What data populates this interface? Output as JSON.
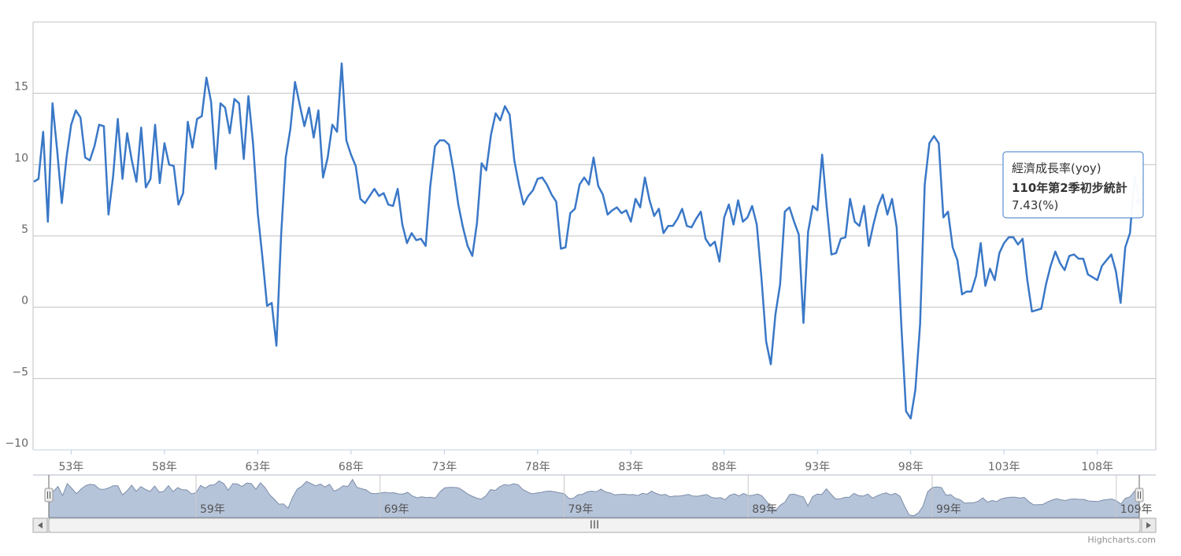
{
  "chart_data": {
    "type": "line",
    "series": [
      {
        "name": "經濟成長率(yoy)",
        "color": "#3a78c7",
        "start": 51,
        "values": [
          8.8,
          9.0,
          12.3,
          6.0,
          14.3,
          11.0,
          7.3,
          10.5,
          12.8,
          13.8,
          13.3,
          10.5,
          10.3,
          11.3,
          12.8,
          12.7,
          6.5,
          9.2,
          13.2,
          9.0,
          12.2,
          10.3,
          8.8,
          12.6,
          8.4,
          9.0,
          12.8,
          8.7,
          11.5,
          10.0,
          9.9,
          7.2,
          8.0,
          13.0,
          11.2,
          13.2,
          13.4,
          16.1,
          14.4,
          9.7,
          14.3,
          14.0,
          12.2,
          14.6,
          14.3,
          10.4,
          14.8,
          11.5,
          6.6,
          3.5,
          0.1,
          0.3,
          -2.7,
          5.0,
          10.5,
          12.5,
          15.8,
          14.2,
          12.7,
          14.0,
          11.9,
          13.8,
          9.1,
          10.5,
          12.8,
          12.3,
          17.1,
          11.7,
          10.7,
          9.9,
          7.6,
          7.3,
          7.8,
          8.3,
          7.8,
          8.0,
          7.2,
          7.1,
          8.3,
          5.8,
          4.5,
          5.2,
          4.7,
          4.8,
          4.3,
          8.5,
          11.3,
          11.7,
          11.7,
          11.4,
          9.5,
          7.2,
          5.6,
          4.3,
          3.6,
          5.9,
          10.1,
          9.6,
          12.1,
          13.6,
          13.1,
          14.1,
          13.5,
          10.3,
          8.6,
          7.2,
          7.8,
          8.2,
          9.0,
          9.1,
          8.6,
          7.9,
          7.4,
          4.1,
          4.2,
          6.6,
          6.9,
          8.6,
          9.1,
          8.6,
          10.5,
          8.5,
          7.9,
          6.5,
          6.8,
          7.0,
          6.6,
          6.8,
          6.0,
          7.6,
          7.0,
          9.1,
          7.5,
          6.4,
          6.9,
          5.2,
          5.7,
          5.7,
          6.2,
          6.9,
          5.7,
          5.6,
          6.2,
          6.7,
          4.8,
          4.3,
          4.6,
          3.2,
          6.3,
          7.2,
          5.8,
          7.5,
          6.0,
          6.3,
          7.1,
          5.8,
          2.0,
          -2.4,
          -4.0,
          -0.5,
          1.6,
          6.7,
          7.0,
          6.0,
          5.1,
          -1.1,
          5.3,
          7.1,
          6.8,
          10.7,
          7.0,
          3.7,
          3.8,
          4.8,
          4.9,
          7.6,
          6.0,
          5.7,
          7.1,
          4.3,
          5.8,
          7.1,
          7.9,
          6.5,
          7.6,
          5.6,
          -1.4,
          -7.3,
          -7.8,
          -5.8,
          -1.2,
          8.6,
          11.5,
          12.0,
          11.5,
          6.3,
          6.7,
          4.2,
          3.3,
          0.9,
          1.1,
          1.1,
          2.2,
          4.5,
          1.5,
          2.7,
          1.9,
          3.8,
          4.5,
          4.9,
          4.9,
          4.4,
          4.8,
          1.9,
          -0.3,
          -0.2,
          -0.1,
          1.6,
          2.9,
          3.9,
          3.1,
          2.6,
          3.6,
          3.7,
          3.4,
          3.4,
          2.3,
          2.1,
          1.9,
          2.9,
          3.3,
          3.7,
          2.5,
          0.3,
          4.2,
          5.2,
          9.2,
          7.43
        ]
      }
    ],
    "yticks": [
      -10,
      -5,
      0,
      5,
      10,
      15
    ],
    "ylim": [
      -10,
      20
    ],
    "xticks": [
      "53年",
      "58年",
      "63年",
      "68年",
      "73年",
      "78年",
      "83年",
      "88年",
      "93年",
      "98年",
      "103年",
      "108年"
    ],
    "navigator_ticks": [
      "59年",
      "69年",
      "79年",
      "89年",
      "99年",
      "109年"
    ],
    "scrollbar_grip": "III",
    "tooltip": {
      "series_name": "經濟成長率(yoy)",
      "point_label": "110年第2季初步統計",
      "value_text": "7.43(%)"
    },
    "credits": "Highcharts.com",
    "grid": true,
    "legend": "none"
  }
}
